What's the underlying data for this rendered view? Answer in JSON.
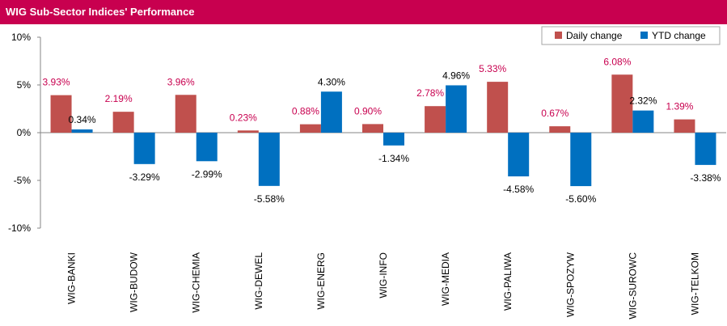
{
  "header": {
    "title": "WIG Sub-Sector Indices' Performance"
  },
  "chart_data": {
    "type": "bar",
    "categories": [
      "WIG-BANKI",
      "WIG-BUDOW",
      "WIG-CHEMIA",
      "WIG-DEWEL",
      "WIG-ENERG",
      "WIG-INFO",
      "WIG-MEDIA",
      "WIG-PALIWA",
      "WIG-SPOZYW",
      "WIG-SUROWC",
      "WIG-TELKOM"
    ],
    "series": [
      {
        "name": "Daily change",
        "color": "#c0504d",
        "label_color": "#c8004f",
        "values": [
          3.93,
          2.19,
          3.96,
          0.23,
          0.88,
          0.9,
          2.78,
          5.33,
          0.67,
          6.08,
          1.39
        ],
        "labels": [
          "3.93%",
          "2.19%",
          "3.96%",
          "0.23%",
          "0.88%",
          "0.90%",
          "2.78%",
          "5.33%",
          "0.67%",
          "6.08%",
          "1.39%"
        ]
      },
      {
        "name": "YTD change",
        "color": "#0070c0",
        "label_color": "#000000",
        "values": [
          0.34,
          -3.29,
          -2.99,
          -5.58,
          4.3,
          -1.34,
          4.96,
          -4.58,
          -5.6,
          2.32,
          -3.38
        ],
        "labels": [
          "0.34%",
          "-3.29%",
          "-2.99%",
          "-5.58%",
          "4.30%",
          "-1.34%",
          "4.96%",
          "-4.58%",
          "-5.60%",
          "2.32%",
          "-3.38%"
        ]
      }
    ],
    "ylim": [
      -10,
      10
    ],
    "yticks": [
      10,
      5,
      0,
      -5,
      -10
    ],
    "ytick_labels": [
      "10%",
      "5%",
      "0%",
      "-5%",
      "-10%"
    ],
    "grid": false,
    "legend_position": "top-right"
  }
}
